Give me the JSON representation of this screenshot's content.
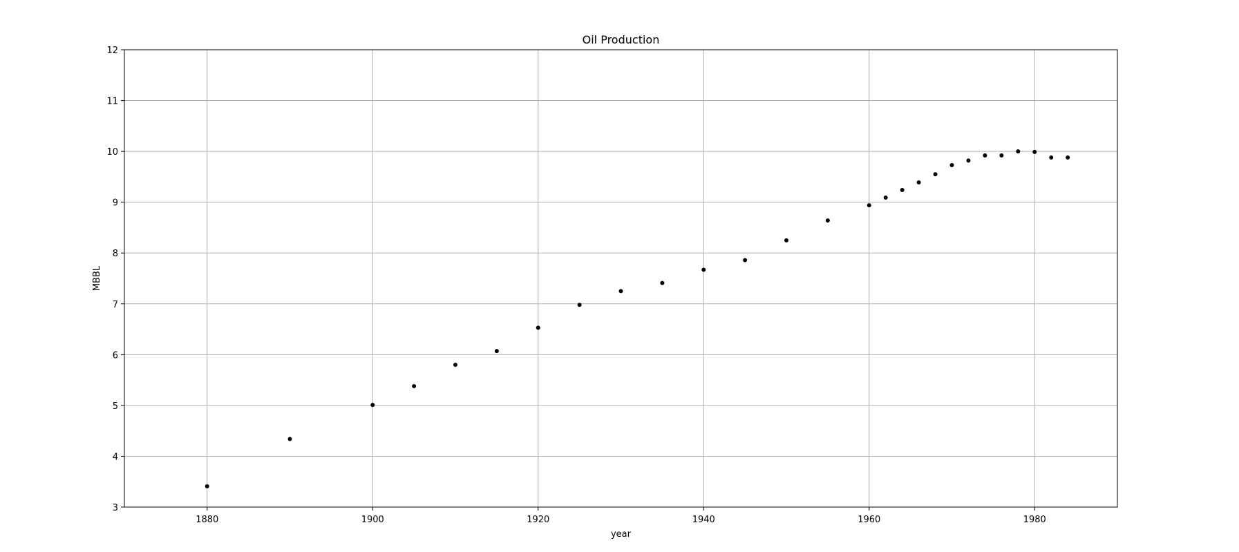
{
  "chart_data": {
    "type": "scatter",
    "title": "Oil Production",
    "xlabel": "year",
    "ylabel": "MBBL",
    "xlim": [
      1870,
      1990
    ],
    "ylim": [
      3,
      12
    ],
    "xticks": [
      1880,
      1900,
      1920,
      1940,
      1960,
      1980
    ],
    "yticks": [
      3,
      4,
      5,
      6,
      7,
      8,
      9,
      10,
      11,
      12
    ],
    "grid": true,
    "marker_color": "#000000",
    "grid_color": "#b0b0b0",
    "series": [
      {
        "x": [
          1880,
          1890,
          1900,
          1905,
          1910,
          1915,
          1920,
          1925,
          1930,
          1935,
          1940,
          1945,
          1950,
          1955,
          1960,
          1962,
          1964,
          1966,
          1968,
          1970,
          1972,
          1974,
          1976,
          1978,
          1980,
          1982,
          1984
        ],
        "y": [
          3.41,
          4.34,
          5.01,
          5.38,
          5.8,
          6.07,
          6.53,
          6.98,
          7.25,
          7.41,
          7.67,
          7.86,
          8.25,
          8.64,
          8.94,
          9.09,
          9.24,
          9.39,
          9.55,
          9.73,
          9.82,
          9.92,
          9.92,
          10.0,
          9.99,
          9.88,
          9.88
        ]
      }
    ]
  }
}
